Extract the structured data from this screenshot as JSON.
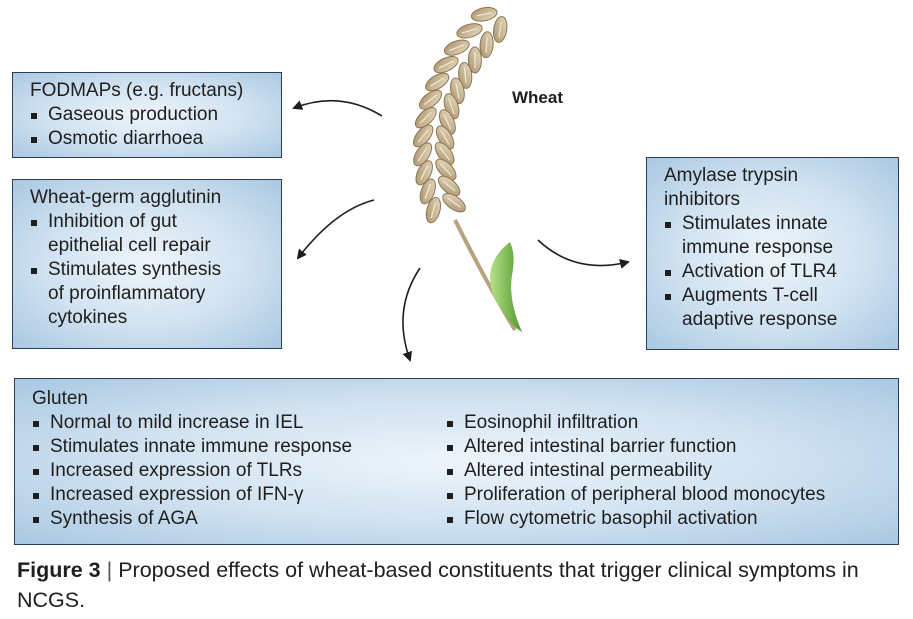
{
  "wheat_label": "Wheat",
  "fodmaps": {
    "title": "FODMAPs (e.g. fructans)",
    "items": [
      "Gaseous production",
      "Osmotic diarrhoea"
    ]
  },
  "wga": {
    "title": "Wheat-germ agglutinin",
    "items": [
      "Inhibition of gut",
      "epithelial cell repair",
      "Stimulates synthesis",
      "of proinflammatory",
      "cytokines"
    ]
  },
  "ati": {
    "title_line1": "Amylase trypsin",
    "title_line2": "inhibitors",
    "items": [
      "Stimulates innate",
      "immune response",
      "Activation of TLR4",
      "Augments T-cell",
      "adaptive response"
    ]
  },
  "gluten": {
    "title": "Gluten",
    "left_items": [
      "Normal to mild increase in IEL",
      "Stimulates innate immune response",
      "Increased expression of TLRs",
      "Increased expression of IFN-γ",
      "Synthesis of AGA"
    ],
    "right_items": [
      "Eosinophil infiltration",
      "Altered intestinal barrier function",
      "Altered intestinal permeability",
      "Proliferation of peripheral blood monocytes",
      "Flow cytometric basophil activation"
    ]
  },
  "caption": {
    "label": "Figure 3",
    "separator": "|",
    "text": "Proposed effects of wheat-based constituents that trigger clinical symptoms in NCGS."
  },
  "colors": {
    "box_border": "#2c3e57",
    "box_fill_center": "#eef5fb",
    "box_fill_edge": "#a9c8e2",
    "grain": "#c9b48f",
    "leaf": "#7dbf4a",
    "arrow": "#1e1e1e"
  }
}
